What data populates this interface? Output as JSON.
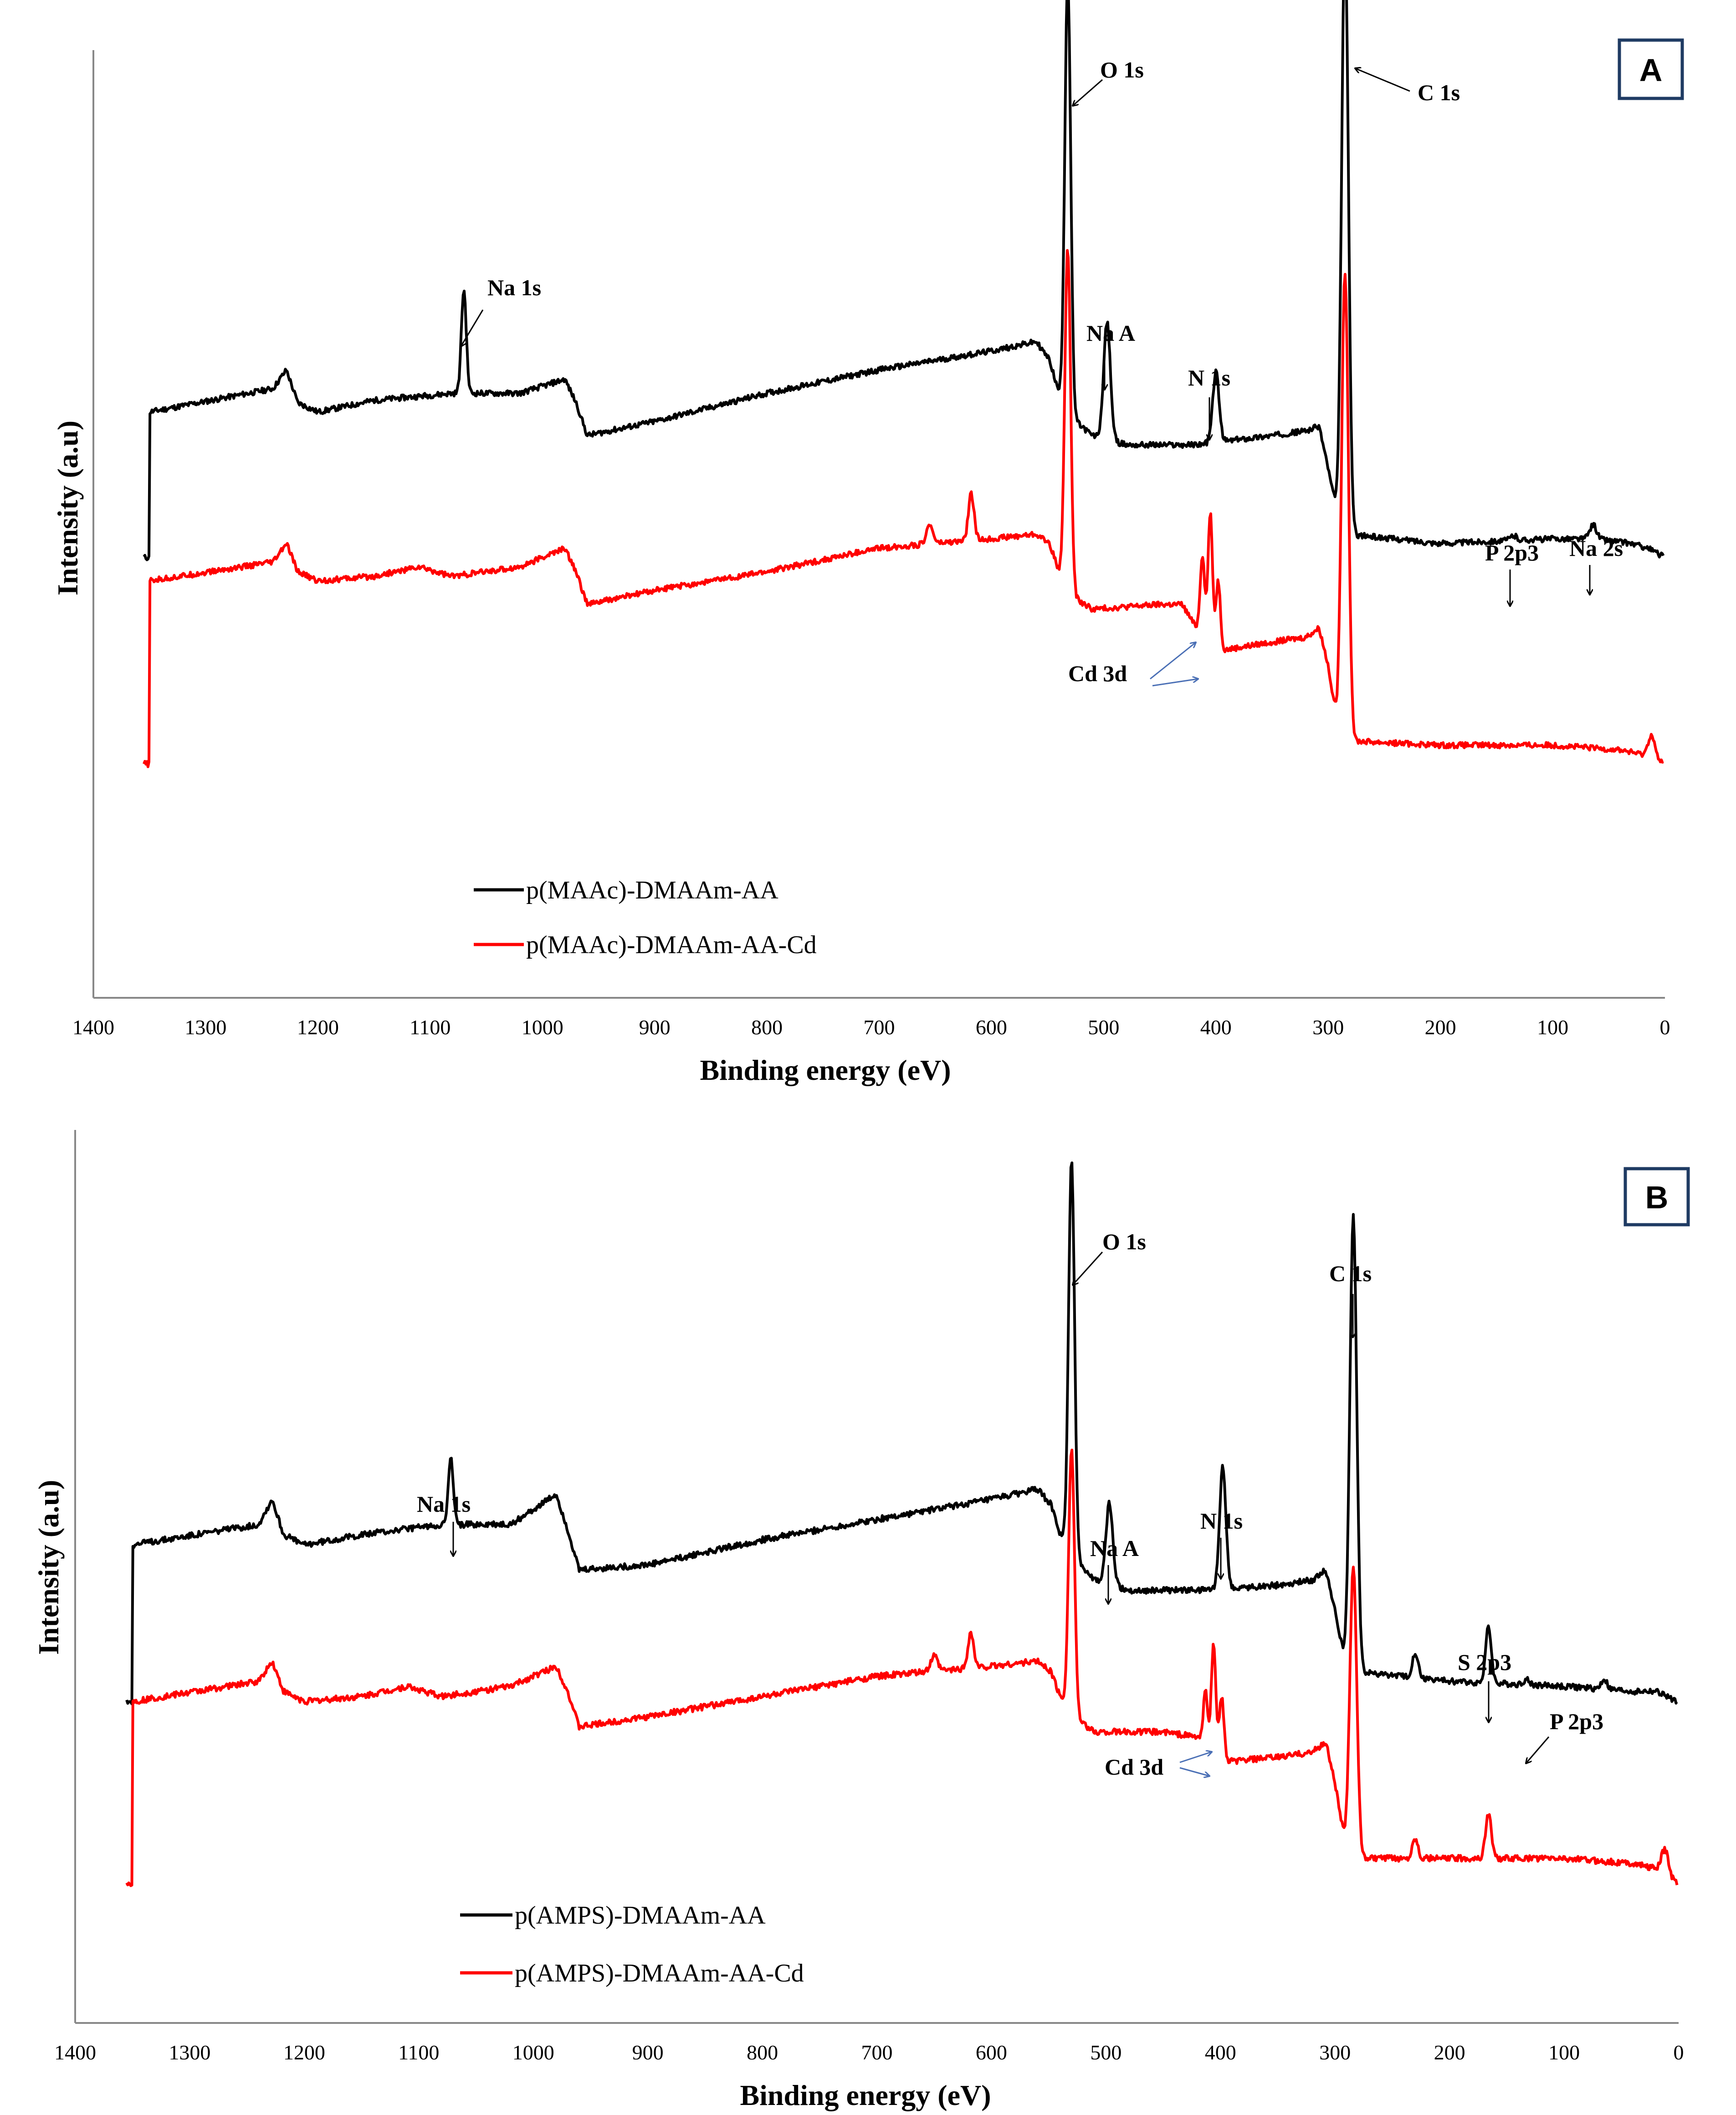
{
  "chart_data": [
    {
      "type": "line",
      "panel_label": "A",
      "xlabel": "Binding  energy (eV)",
      "ylabel": "Intensity (a.u)",
      "xlim": [
        1400,
        0
      ],
      "xticks": [
        "1400",
        "1300",
        "1200",
        "1100",
        "1000",
        "900",
        "800",
        "700",
        "600",
        "500",
        "400",
        "300",
        "200",
        "100",
        "0"
      ],
      "series": [
        {
          "name": "p(MAAc)-DMAAm-AA",
          "color": "#000000",
          "offset": 0.52,
          "baseline": [
            [
              1350,
              0
            ],
            [
              1240,
              0.05
            ],
            [
              1228,
              0.09
            ],
            [
              1218,
              0.02
            ],
            [
              1200,
              0
            ],
            [
              1150,
              0.025
            ],
            [
              1080,
              0.04
            ],
            [
              1020,
              0.04
            ],
            [
              980,
              0.07
            ],
            [
              970,
              0.02
            ],
            [
              960,
              -0.05
            ],
            [
              900,
              -0.02
            ],
            [
              800,
              0.04
            ],
            [
              700,
              0.09
            ],
            [
              600,
              0.13
            ],
            [
              560,
              0.15
            ],
            [
              548,
              0.11
            ],
            [
              540,
              0.04
            ],
            [
              530,
              -0.01
            ],
            [
              510,
              -0.05
            ],
            [
              480,
              -0.07
            ],
            [
              420,
              -0.07
            ],
            [
              350,
              -0.05
            ],
            [
              320,
              -0.04
            ],
            [
              308,
              -0.03
            ],
            [
              300,
              -0.12
            ],
            [
              292,
              -0.22
            ],
            [
              285,
              -0.26
            ],
            [
              200,
              -0.28
            ],
            [
              100,
              -0.27
            ],
            [
              60,
              -0.27
            ],
            [
              30,
              -0.28
            ],
            [
              15,
              -0.29
            ],
            [
              0,
              -0.31
            ]
          ],
          "peaks": [
            {
              "x": 1070,
              "h": 0.22,
              "w": 2.2
            },
            {
              "x": 532,
              "h": 0.93,
              "w": 2.6
            },
            {
              "x": 497,
              "h": 0.25,
              "w": 3
            },
            {
              "x": 400,
              "h": 0.15,
              "w": 2.8
            },
            {
              "x": 285,
              "h": 1.28,
              "w": 3
            },
            {
              "x": 135,
              "h": 0.01,
              "w": 3
            },
            {
              "x": 64,
              "h": 0.03,
              "w": 3
            }
          ]
        },
        {
          "name": "p(MAAc)-DMAAm-AA-Cd",
          "color": "#ff0000",
          "offset": 0.16,
          "baseline": [
            [
              1350,
              0
            ],
            [
              1240,
              0.04
            ],
            [
              1228,
              0.08
            ],
            [
              1218,
              0.02
            ],
            [
              1200,
              0
            ],
            [
              1150,
              0.01
            ],
            [
              1110,
              0.03
            ],
            [
              1080,
              0.01
            ],
            [
              1020,
              0.03
            ],
            [
              980,
              0.07
            ],
            [
              970,
              0.02
            ],
            [
              960,
              -0.05
            ],
            [
              900,
              -0.02
            ],
            [
              800,
              0.02
            ],
            [
              700,
              0.07
            ],
            [
              600,
              0.09
            ],
            [
              560,
              0.1
            ],
            [
              548,
              0.08
            ],
            [
              540,
              0.02
            ],
            [
              530,
              -0.03
            ],
            [
              510,
              -0.06
            ],
            [
              450,
              -0.05
            ],
            [
              430,
              -0.05
            ],
            [
              420,
              -0.09
            ],
            [
              410,
              -0.12
            ],
            [
              400,
              -0.15
            ],
            [
              350,
              -0.13
            ],
            [
              320,
              -0.12
            ],
            [
              308,
              -0.1
            ],
            [
              300,
              -0.18
            ],
            [
              292,
              -0.3
            ],
            [
              285,
              -0.34
            ],
            [
              200,
              -0.35
            ],
            [
              100,
              -0.35
            ],
            [
              40,
              -0.36
            ],
            [
              20,
              -0.37
            ],
            [
              0,
              -0.39
            ]
          ],
          "peaks": [
            {
              "x": 655,
              "h": 0.04,
              "w": 3
            },
            {
              "x": 618,
              "h": 0.1,
              "w": 2.5
            },
            {
              "x": 532,
              "h": 0.73,
              "w": 2.6
            },
            {
              "x": 412,
              "h": 0.17,
              "w": 2
            },
            {
              "x": 405,
              "h": 0.28,
              "w": 2
            },
            {
              "x": 398,
              "h": 0.15,
              "w": 2
            },
            {
              "x": 285,
              "h": 1.0,
              "w": 3
            },
            {
              "x": 12,
              "h": 0.05,
              "w": 3
            }
          ]
        }
      ],
      "annotations": [
        "O 1s",
        "C 1s",
        "Na 1s",
        "Na A",
        "N 1s",
        "P 2p3",
        "Na 2s",
        "Cd 3d"
      ]
    },
    {
      "type": "line",
      "panel_label": "B",
      "xlabel": "Binding  energy (eV)",
      "ylabel": "Intensity (a.u)",
      "xlim": [
        1400,
        0
      ],
      "xticks": [
        "1400",
        "1300",
        "1200",
        "1100",
        "1000",
        "900",
        "800",
        "700",
        "600",
        "500",
        "400",
        "300",
        "200",
        "100",
        "0"
      ],
      "series": [
        {
          "name": "p(AMPS)-DMAAm-AA",
          "color": "#000000",
          "offset": 0.45,
          "baseline": [
            [
              1350,
              0
            ],
            [
              1240,
              0.04
            ],
            [
              1228,
              0.09
            ],
            [
              1218,
              0.02
            ],
            [
              1200,
              0
            ],
            [
              1150,
              0.02
            ],
            [
              1080,
              0.04
            ],
            [
              1020,
              0.04
            ],
            [
              980,
              0.1
            ],
            [
              970,
              0.03
            ],
            [
              960,
              -0.05
            ],
            [
              900,
              -0.04
            ],
            [
              800,
              0.01
            ],
            [
              700,
              0.05
            ],
            [
              600,
              0.09
            ],
            [
              560,
              0.11
            ],
            [
              548,
              0.08
            ],
            [
              540,
              0.02
            ],
            [
              530,
              -0.02
            ],
            [
              510,
              -0.07
            ],
            [
              480,
              -0.09
            ],
            [
              420,
              -0.09
            ],
            [
              350,
              -0.08
            ],
            [
              320,
              -0.07
            ],
            [
              308,
              -0.05
            ],
            [
              300,
              -0.13
            ],
            [
              292,
              -0.22
            ],
            [
              285,
              -0.25
            ],
            [
              200,
              -0.27
            ],
            [
              100,
              -0.28
            ],
            [
              40,
              -0.29
            ],
            [
              20,
              -0.29
            ],
            [
              0,
              -0.31
            ]
          ],
          "peaks": [
            {
              "x": 1072,
              "h": 0.13,
              "w": 2.2
            },
            {
              "x": 530,
              "h": 0.78,
              "w": 2.6
            },
            {
              "x": 497,
              "h": 0.16,
              "w": 3
            },
            {
              "x": 398,
              "h": 0.24,
              "w": 2.8
            },
            {
              "x": 284,
              "h": 0.9,
              "w": 3
            },
            {
              "x": 230,
              "h": 0.05,
              "w": 2.5
            },
            {
              "x": 166,
              "h": 0.11,
              "w": 2.5
            },
            {
              "x": 133,
              "h": 0.01,
              "w": 2.5
            },
            {
              "x": 65,
              "h": 0.02,
              "w": 2.5
            }
          ]
        },
        {
          "name": "p(AMPS)-DMAAm-AA-Cd",
          "color": "#ff0000",
          "offset": 0.14,
          "baseline": [
            [
              1350,
              0
            ],
            [
              1240,
              0.04
            ],
            [
              1228,
              0.08
            ],
            [
              1218,
              0.02
            ],
            [
              1200,
              0
            ],
            [
              1150,
              0.01
            ],
            [
              1110,
              0.03
            ],
            [
              1080,
              0.01
            ],
            [
              1020,
              0.03
            ],
            [
              980,
              0.07
            ],
            [
              970,
              0.02
            ],
            [
              960,
              -0.05
            ],
            [
              900,
              -0.03
            ],
            [
              800,
              0.01
            ],
            [
              700,
              0.05
            ],
            [
              600,
              0.07
            ],
            [
              560,
              0.08
            ],
            [
              548,
              0.06
            ],
            [
              540,
              0.01
            ],
            [
              530,
              -0.03
            ],
            [
              510,
              -0.06
            ],
            [
              450,
              -0.06
            ],
            [
              420,
              -0.07
            ],
            [
              410,
              -0.1
            ],
            [
              400,
              -0.12
            ],
            [
              350,
              -0.11
            ],
            [
              320,
              -0.1
            ],
            [
              308,
              -0.08
            ],
            [
              300,
              -0.16
            ],
            [
              292,
              -0.27
            ],
            [
              285,
              -0.31
            ],
            [
              200,
              -0.31
            ],
            [
              100,
              -0.31
            ],
            [
              40,
              -0.32
            ],
            [
              20,
              -0.33
            ],
            [
              0,
              -0.36
            ]
          ],
          "peaks": [
            {
              "x": 650,
              "h": 0.03,
              "w": 3
            },
            {
              "x": 618,
              "h": 0.07,
              "w": 2.5
            },
            {
              "x": 530,
              "h": 0.53,
              "w": 2.6
            },
            {
              "x": 413,
              "h": 0.11,
              "w": 2
            },
            {
              "x": 406,
              "h": 0.22,
              "w": 2
            },
            {
              "x": 399,
              "h": 0.13,
              "w": 2
            },
            {
              "x": 284,
              "h": 0.58,
              "w": 3
            },
            {
              "x": 230,
              "h": 0.04,
              "w": 2.5
            },
            {
              "x": 166,
              "h": 0.09,
              "w": 2.5
            },
            {
              "x": 12,
              "h": 0.05,
              "w": 3
            }
          ]
        }
      ],
      "annotations": [
        "O 1s",
        "C 1s",
        "Na 1s",
        "Na A",
        "N 1s",
        "S 2p3",
        "P 2p3",
        "Cd 3d"
      ]
    }
  ],
  "colors": {
    "black_series": "#000000",
    "red_series": "#ff0000",
    "cd_arrows": "#4a6fb5",
    "badge_border": "#1f3b63"
  }
}
